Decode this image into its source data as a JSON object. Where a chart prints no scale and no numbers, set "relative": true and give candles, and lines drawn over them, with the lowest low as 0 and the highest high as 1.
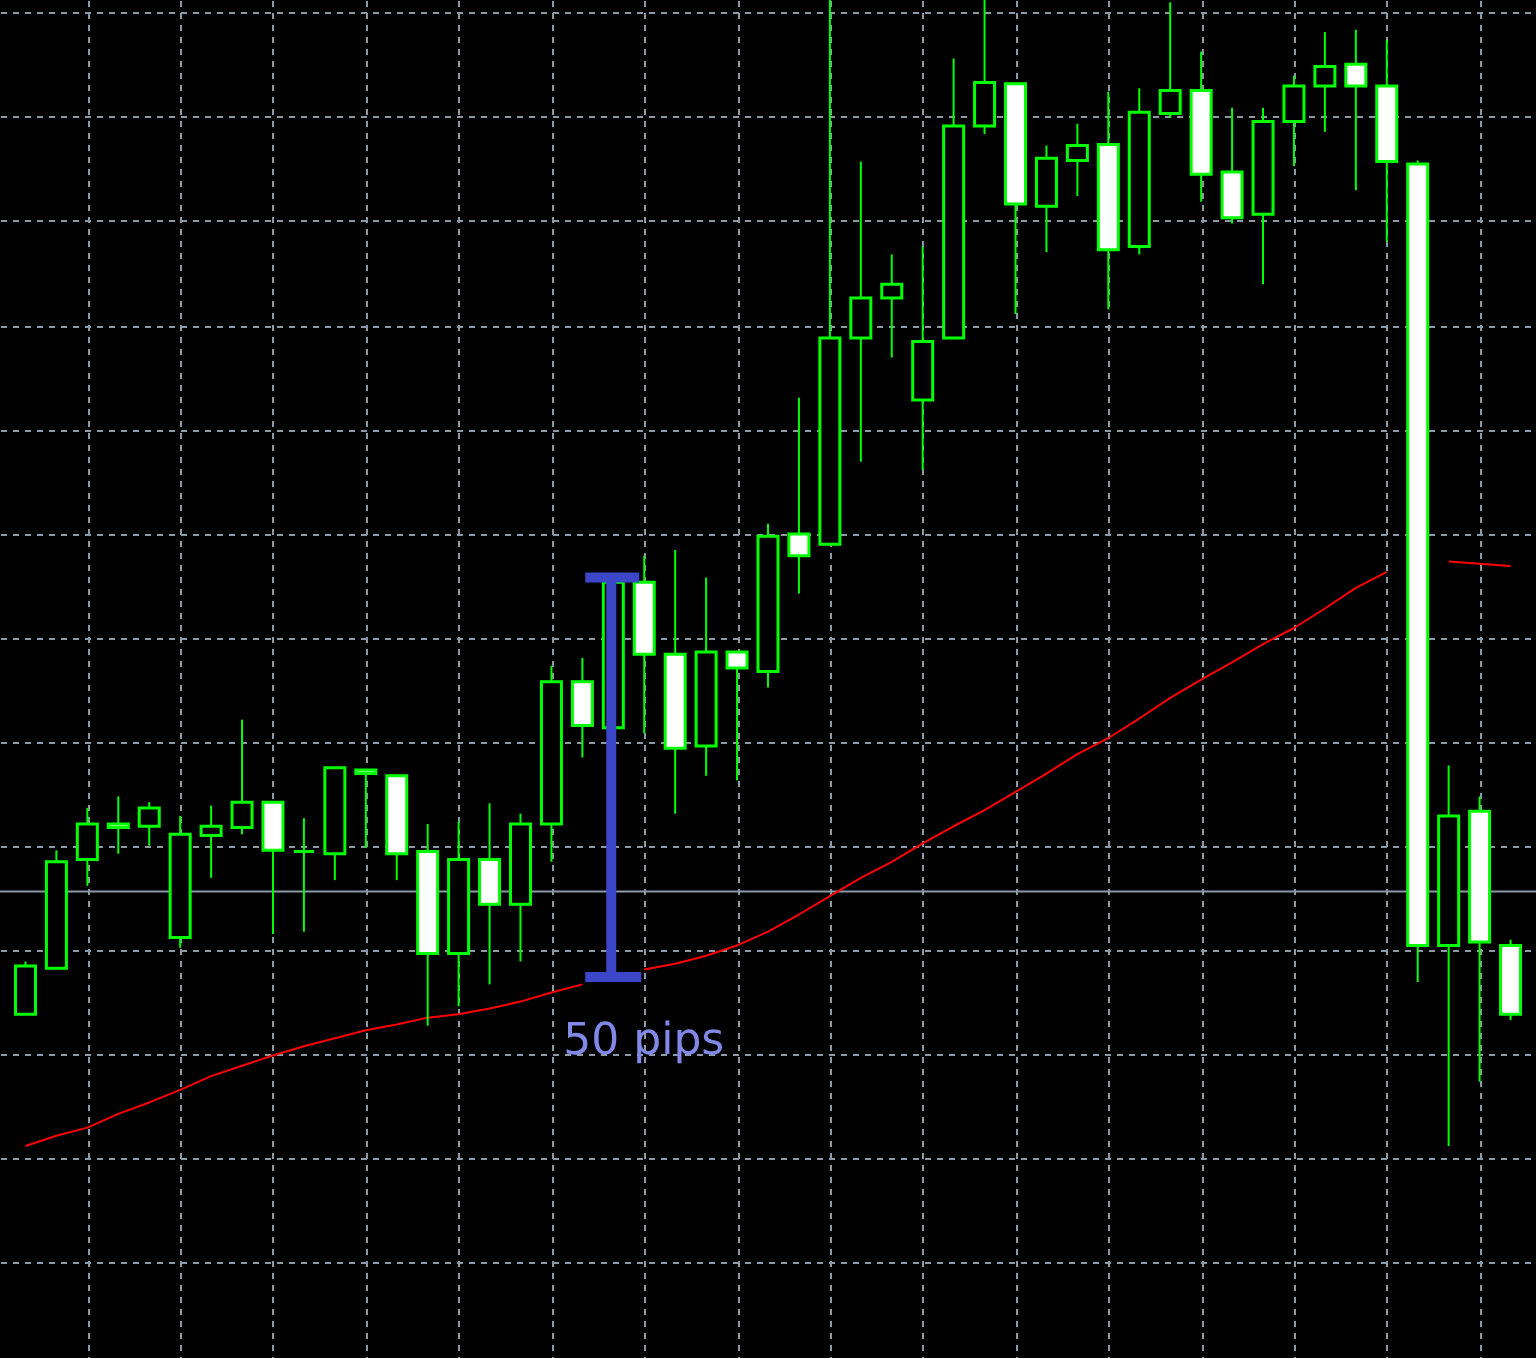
{
  "chart_data": {
    "type": "candlestick",
    "relative": true,
    "color": "#00ff00",
    "grid": true,
    "categories": [
      null,
      null,
      null,
      null,
      null,
      null,
      null,
      null,
      null,
      null,
      null,
      null,
      null,
      null,
      null,
      null,
      null,
      null,
      null,
      null,
      null,
      null,
      null,
      null,
      null,
      null,
      null,
      null,
      null,
      null,
      null,
      null,
      null,
      null,
      null,
      null,
      null,
      null,
      null,
      null,
      null,
      null,
      null,
      null,
      null,
      null,
      null,
      null,
      null
    ],
    "ohlc": [
      [
        0.115,
        0.161,
        0.115,
        0.157
      ],
      [
        0.155,
        0.258,
        0.155,
        0.248
      ],
      [
        0.25,
        0.295,
        0.227,
        0.281
      ],
      [
        0.281,
        0.305,
        0.255,
        0.278
      ],
      [
        0.279,
        0.3,
        0.262,
        0.295
      ],
      [
        0.182,
        0.288,
        0.173,
        0.272
      ],
      [
        0.271,
        0.297,
        0.234,
        0.279
      ],
      [
        0.278,
        0.372,
        0.272,
        0.3
      ],
      [
        0.3,
        0.3,
        0.185,
        0.258
      ],
      [
        0.257,
        0.286,
        0.187,
        0.257
      ],
      [
        0.255,
        0.33,
        0.232,
        0.33
      ],
      [
        0.328,
        0.328,
        0.26,
        0.325
      ],
      [
        0.323,
        0.323,
        0.232,
        0.255
      ],
      [
        0.257,
        0.281,
        0.105,
        0.168
      ],
      [
        0.168,
        0.283,
        0.122,
        0.25
      ],
      [
        0.25,
        0.299,
        0.141,
        0.211
      ],
      [
        0.211,
        0.29,
        0.161,
        0.281
      ],
      [
        0.281,
        0.419,
        0.248,
        0.405
      ],
      [
        0.405,
        0.426,
        0.339,
        0.367
      ],
      [
        0.365,
        0.496,
        0.365,
        0.492
      ],
      [
        0.492,
        0.515,
        0.36,
        0.429
      ],
      [
        0.429,
        0.52,
        0.29,
        0.347
      ],
      [
        0.349,
        0.496,
        0.323,
        0.431
      ],
      [
        0.431,
        0.431,
        0.319,
        0.417
      ],
      [
        0.414,
        0.543,
        0.4,
        0.532
      ],
      [
        0.534,
        0.653,
        0.482,
        0.515
      ],
      [
        0.525,
        1.0,
        0.525,
        0.705
      ],
      [
        0.705,
        0.859,
        0.597,
        0.74
      ],
      [
        0.74,
        0.778,
        0.688,
        0.752
      ],
      [
        0.651,
        0.785,
        0.59,
        0.702
      ],
      [
        0.705,
        0.949,
        0.705,
        0.89
      ],
      [
        0.89,
        1.0,
        0.883,
        0.928
      ],
      [
        0.927,
        0.927,
        0.726,
        0.822
      ],
      [
        0.82,
        0.873,
        0.78,
        0.862
      ],
      [
        0.86,
        0.892,
        0.829,
        0.873
      ],
      [
        0.874,
        0.92,
        0.73,
        0.782
      ],
      [
        0.785,
        0.923,
        0.778,
        0.902
      ],
      [
        0.901,
        0.998,
        0.897,
        0.921
      ],
      [
        0.921,
        0.955,
        0.824,
        0.848
      ],
      [
        0.85,
        0.906,
        0.805,
        0.81
      ],
      [
        0.813,
        0.906,
        0.752,
        0.894
      ],
      [
        0.894,
        0.934,
        0.855,
        0.925
      ],
      [
        0.925,
        0.972,
        0.885,
        0.942
      ],
      [
        0.944,
        0.974,
        0.834,
        0.925
      ],
      [
        0.925,
        0.965,
        0.789,
        0.859
      ],
      [
        0.857,
        0.86,
        0.143,
        0.175
      ],
      [
        0.175,
        0.332,
        0.0,
        0.288
      ],
      [
        0.292,
        0.305,
        0.056,
        0.178
      ],
      [
        0.175,
        0.18,
        0.11,
        0.115
      ]
    ],
    "series": [
      {
        "type": "line",
        "color": "#ff0000",
        "values": [
          0.0,
          0.009,
          0.016,
          0.028,
          0.038,
          0.049,
          0.061,
          0.07,
          0.079,
          0.087,
          0.094,
          0.101,
          0.106,
          0.112,
          0.115,
          0.12,
          0.126,
          0.134,
          0.141,
          null,
          0.154,
          0.159,
          0.166,
          0.175,
          0.187,
          0.202,
          0.218,
          0.234,
          0.248,
          0.264,
          0.279,
          0.293,
          0.309,
          0.325,
          0.342,
          0.356,
          0.373,
          0.391,
          0.407,
          0.422,
          0.438,
          0.452,
          0.469,
          0.487,
          0.501,
          null,
          0.51,
          0.508,
          0.506
        ]
      }
    ],
    "ref_lines": [
      {
        "axis": "y",
        "value": 0.222,
        "color": "#8c9aa8"
      }
    ],
    "annotations": [
      "50 pips"
    ]
  }
}
